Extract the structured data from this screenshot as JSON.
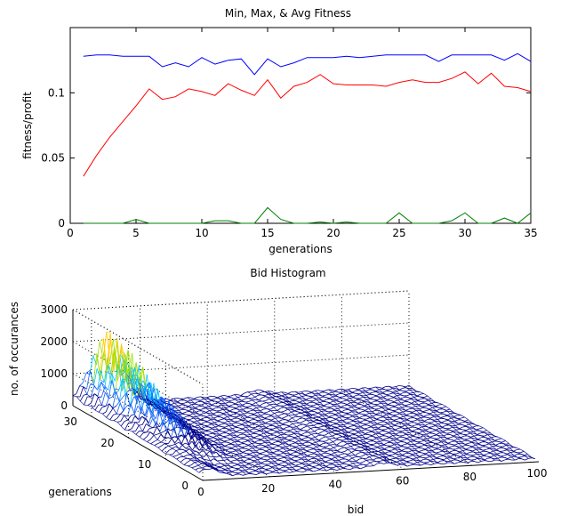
{
  "chart_data": [
    {
      "type": "line",
      "title": "Min, Max, & Avg Fitness",
      "xlabel": "generations",
      "ylabel": "fitness/profit",
      "xlim": [
        0,
        35
      ],
      "ylim": [
        0,
        0.15
      ],
      "x_ticks": [
        "0",
        "5",
        "10",
        "15",
        "20",
        "25",
        "30",
        "35"
      ],
      "y_ticks": [
        "0",
        "0.05",
        "0.1"
      ],
      "x": [
        1,
        2,
        3,
        4,
        5,
        6,
        7,
        8,
        9,
        10,
        11,
        12,
        13,
        14,
        15,
        16,
        17,
        18,
        19,
        20,
        21,
        22,
        23,
        24,
        25,
        26,
        27,
        28,
        29,
        30,
        31,
        32,
        33,
        34,
        35
      ],
      "series": [
        {
          "color": "#0000ff",
          "values": [
            0.128,
            0.129,
            0.129,
            0.128,
            0.128,
            0.128,
            0.12,
            0.123,
            0.12,
            0.127,
            0.122,
            0.125,
            0.126,
            0.114,
            0.126,
            0.12,
            0.123,
            0.127,
            0.127,
            0.127,
            0.128,
            0.127,
            0.128,
            0.129,
            0.129,
            0.129,
            0.129,
            0.124,
            0.129,
            0.129,
            0.129,
            0.129,
            0.125,
            0.13,
            0.124
          ]
        },
        {
          "color": "#ff0000",
          "values": [
            0.036,
            0.052,
            0.066,
            0.078,
            0.09,
            0.103,
            0.095,
            0.097,
            0.103,
            0.101,
            0.098,
            0.107,
            0.102,
            0.098,
            0.11,
            0.096,
            0.105,
            0.108,
            0.114,
            0.107,
            0.106,
            0.106,
            0.106,
            0.105,
            0.108,
            0.11,
            0.108,
            0.108,
            0.111,
            0.116,
            0.107,
            0.115,
            0.105,
            0.104,
            0.101
          ]
        },
        {
          "color": "#008000",
          "values": [
            0,
            0,
            0,
            0,
            0.003,
            0,
            0,
            0,
            0,
            0,
            0.002,
            0.002,
            0,
            0,
            0.012,
            0.003,
            0,
            0,
            0.001,
            0,
            0.001,
            0,
            0,
            0,
            0.008,
            0,
            0,
            0,
            0.002,
            0.008,
            0,
            0,
            0.004,
            0,
            0.008
          ]
        }
      ]
    },
    {
      "type": "surface",
      "title": "Bid Histogram",
      "xlabel": "bid",
      "ylabel": "generations",
      "zlabel": "no. of occurances",
      "x_ticks": [
        "0",
        "20",
        "40",
        "60",
        "80",
        "100"
      ],
      "y_ticks": [
        "0",
        "10",
        "20",
        "30"
      ],
      "z_ticks": [
        "0",
        "1000",
        "2000",
        "3000"
      ],
      "xlim": [
        0,
        100
      ],
      "ylim": [
        0,
        35
      ],
      "zlim": [
        0,
        3000
      ],
      "peak": {
        "bid": 10,
        "generation": 30,
        "count": 2600
      }
    }
  ]
}
